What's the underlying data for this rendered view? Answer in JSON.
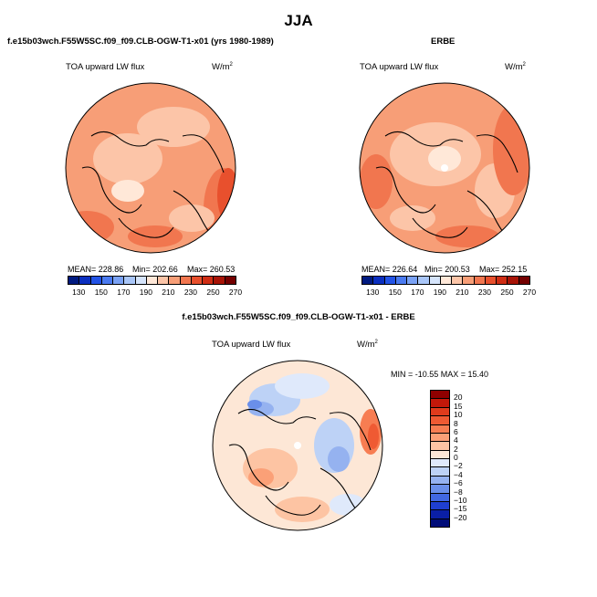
{
  "figure": {
    "title": "JJA",
    "diff_title": "f.e15b03wch.F55W5SC.f09_f09.CLB-OGW-T1-x01 - ERBE",
    "min_max_label": "MIN = -10.55  MAX =  15.40",
    "colors": {
      "land_outline": "#000000"
    }
  },
  "panels": [
    {
      "id": "model",
      "title": "f.e15b03wch.F55W5SC.f09_f09.CLB-OGW-T1-x01 (yrs 1980-1989)",
      "variable": "TOA upward LW flux",
      "units": "W/m",
      "units_sup": "2",
      "mean_label": "MEAN=  228.86",
      "min_label": "Min=  202.66",
      "max_label": "Max=  260.53"
    },
    {
      "id": "obs",
      "title": "ERBE",
      "variable": "TOA upward LW flux",
      "units": "W/m",
      "units_sup": "2",
      "mean_label": "MEAN=  226.64",
      "min_label": "Min=  200.53",
      "max_label": "Max=  252.15"
    },
    {
      "id": "diff",
      "variable": "TOA upward LW flux",
      "units": "W/m",
      "units_sup": "2"
    }
  ],
  "chart_data": [
    {
      "type": "heatmap",
      "projection": "north-polar-stereographic",
      "title": "f.e15b03wch.F55W5SC.f09_f09.CLB-OGW-T1-x01 (yrs 1980-1989)",
      "variable": "TOA upward LW flux",
      "units": "W/m2",
      "mean": 228.86,
      "min": 202.66,
      "max": 260.53,
      "colorbar": {
        "levels": [
          130,
          150,
          170,
          190,
          210,
          230,
          250,
          270
        ],
        "colors": [
          "#001a80",
          "#0b2fbf",
          "#2353e6",
          "#4a7af0",
          "#7aa2f5",
          "#a9c6f8",
          "#d5e4fb",
          "#ffe8d8",
          "#fcc5a8",
          "#f79e77",
          "#f1764f",
          "#e8502d",
          "#cf2d14",
          "#a81407",
          "#740000"
        ]
      }
    },
    {
      "type": "heatmap",
      "projection": "north-polar-stereographic",
      "title": "ERBE",
      "variable": "TOA upward LW flux",
      "units": "W/m2",
      "mean": 226.64,
      "min": 200.53,
      "max": 252.15,
      "colorbar": {
        "levels": [
          130,
          150,
          170,
          190,
          210,
          230,
          250,
          270
        ],
        "colors": [
          "#001a80",
          "#0b2fbf",
          "#2353e6",
          "#4a7af0",
          "#7aa2f5",
          "#a9c6f8",
          "#d5e4fb",
          "#ffe8d8",
          "#fcc5a8",
          "#f79e77",
          "#f1764f",
          "#e8502d",
          "#cf2d14",
          "#a81407",
          "#740000"
        ]
      }
    },
    {
      "type": "heatmap",
      "projection": "north-polar-stereographic",
      "title": "f.e15b03wch.F55W5SC.f09_f09.CLB-OGW-T1-x01 - ERBE",
      "variable": "TOA upward LW flux",
      "units": "W/m2",
      "min": -10.55,
      "max": 15.4,
      "colorbar": {
        "orientation": "vertical",
        "levels": [
          20,
          15,
          10,
          8,
          6,
          4,
          2,
          0,
          -2,
          -4,
          -6,
          -8,
          -10,
          -15,
          -20
        ],
        "colors": [
          "#8f0000",
          "#c3180a",
          "#e03b1c",
          "#ef5a33",
          "#f77d52",
          "#fba077",
          "#fdc4a3",
          "#fde7d6",
          "#dfe9fb",
          "#bdd2f6",
          "#95b2f0",
          "#6a8fea",
          "#4168e2",
          "#1f3fd0",
          "#0a1fa6",
          "#000c78"
        ]
      }
    }
  ]
}
